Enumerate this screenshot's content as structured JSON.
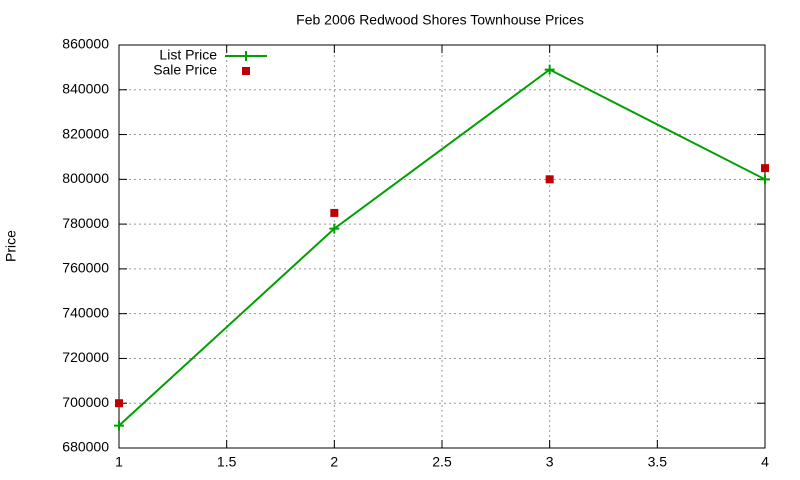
{
  "chart_data": {
    "type": "line",
    "title": "Feb 2006 Redwood Shores Townhouse Prices",
    "y_label": "Price",
    "x": [
      1,
      2,
      3,
      4
    ],
    "series": [
      {
        "name": "List Price",
        "color": "#00a000",
        "line": true,
        "marker": "plus",
        "values": [
          690000,
          778000,
          849000,
          800000
        ]
      },
      {
        "name": "Sale Price",
        "color": "#c00000",
        "line": false,
        "marker": "square",
        "values": [
          700000,
          785000,
          800000,
          805000
        ]
      }
    ],
    "xlim": [
      1,
      4
    ],
    "xticks": [
      1,
      1.5,
      2,
      2.5,
      3,
      3.5,
      4
    ],
    "ylim": [
      680000,
      860000
    ],
    "yticks": [
      680000,
      700000,
      720000,
      740000,
      760000,
      780000,
      800000,
      820000,
      840000,
      860000
    ],
    "grid": true,
    "legend": "top-left"
  }
}
